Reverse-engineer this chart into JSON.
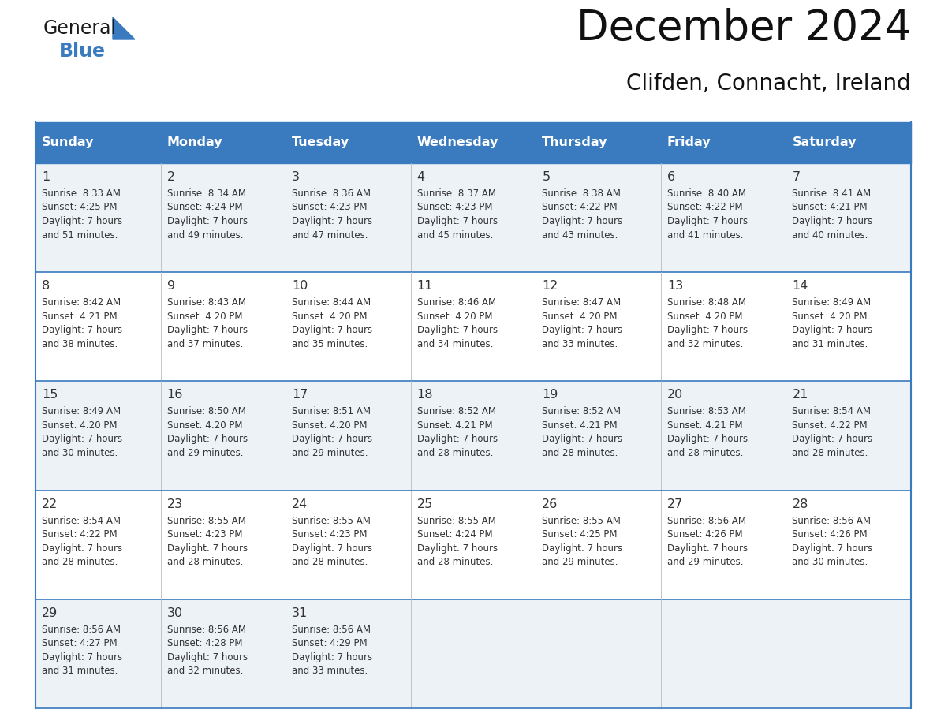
{
  "title": "December 2024",
  "subtitle": "Clifden, Connacht, Ireland",
  "header_color": "#3a7abf",
  "header_text_color": "#ffffff",
  "border_color": "#3a7abf",
  "text_color": "#333333",
  "alt_row_color": "#edf2f7",
  "white_row_color": "#ffffff",
  "days_of_week": [
    "Sunday",
    "Monday",
    "Tuesday",
    "Wednesday",
    "Thursday",
    "Friday",
    "Saturday"
  ],
  "weeks": [
    [
      {
        "day": "1",
        "sunrise": "8:33 AM",
        "sunset": "4:25 PM",
        "daylight_h": "7 hours",
        "daylight_m": "and 51 minutes."
      },
      {
        "day": "2",
        "sunrise": "8:34 AM",
        "sunset": "4:24 PM",
        "daylight_h": "7 hours",
        "daylight_m": "and 49 minutes."
      },
      {
        "day": "3",
        "sunrise": "8:36 AM",
        "sunset": "4:23 PM",
        "daylight_h": "7 hours",
        "daylight_m": "and 47 minutes."
      },
      {
        "day": "4",
        "sunrise": "8:37 AM",
        "sunset": "4:23 PM",
        "daylight_h": "7 hours",
        "daylight_m": "and 45 minutes."
      },
      {
        "day": "5",
        "sunrise": "8:38 AM",
        "sunset": "4:22 PM",
        "daylight_h": "7 hours",
        "daylight_m": "and 43 minutes."
      },
      {
        "day": "6",
        "sunrise": "8:40 AM",
        "sunset": "4:22 PM",
        "daylight_h": "7 hours",
        "daylight_m": "and 41 minutes."
      },
      {
        "day": "7",
        "sunrise": "8:41 AM",
        "sunset": "4:21 PM",
        "daylight_h": "7 hours",
        "daylight_m": "and 40 minutes."
      }
    ],
    [
      {
        "day": "8",
        "sunrise": "8:42 AM",
        "sunset": "4:21 PM",
        "daylight_h": "7 hours",
        "daylight_m": "and 38 minutes."
      },
      {
        "day": "9",
        "sunrise": "8:43 AM",
        "sunset": "4:20 PM",
        "daylight_h": "7 hours",
        "daylight_m": "and 37 minutes."
      },
      {
        "day": "10",
        "sunrise": "8:44 AM",
        "sunset": "4:20 PM",
        "daylight_h": "7 hours",
        "daylight_m": "and 35 minutes."
      },
      {
        "day": "11",
        "sunrise": "8:46 AM",
        "sunset": "4:20 PM",
        "daylight_h": "7 hours",
        "daylight_m": "and 34 minutes."
      },
      {
        "day": "12",
        "sunrise": "8:47 AM",
        "sunset": "4:20 PM",
        "daylight_h": "7 hours",
        "daylight_m": "and 33 minutes."
      },
      {
        "day": "13",
        "sunrise": "8:48 AM",
        "sunset": "4:20 PM",
        "daylight_h": "7 hours",
        "daylight_m": "and 32 minutes."
      },
      {
        "day": "14",
        "sunrise": "8:49 AM",
        "sunset": "4:20 PM",
        "daylight_h": "7 hours",
        "daylight_m": "and 31 minutes."
      }
    ],
    [
      {
        "day": "15",
        "sunrise": "8:49 AM",
        "sunset": "4:20 PM",
        "daylight_h": "7 hours",
        "daylight_m": "and 30 minutes."
      },
      {
        "day": "16",
        "sunrise": "8:50 AM",
        "sunset": "4:20 PM",
        "daylight_h": "7 hours",
        "daylight_m": "and 29 minutes."
      },
      {
        "day": "17",
        "sunrise": "8:51 AM",
        "sunset": "4:20 PM",
        "daylight_h": "7 hours",
        "daylight_m": "and 29 minutes."
      },
      {
        "day": "18",
        "sunrise": "8:52 AM",
        "sunset": "4:21 PM",
        "daylight_h": "7 hours",
        "daylight_m": "and 28 minutes."
      },
      {
        "day": "19",
        "sunrise": "8:52 AM",
        "sunset": "4:21 PM",
        "daylight_h": "7 hours",
        "daylight_m": "and 28 minutes."
      },
      {
        "day": "20",
        "sunrise": "8:53 AM",
        "sunset": "4:21 PM",
        "daylight_h": "7 hours",
        "daylight_m": "and 28 minutes."
      },
      {
        "day": "21",
        "sunrise": "8:54 AM",
        "sunset": "4:22 PM",
        "daylight_h": "7 hours",
        "daylight_m": "and 28 minutes."
      }
    ],
    [
      {
        "day": "22",
        "sunrise": "8:54 AM",
        "sunset": "4:22 PM",
        "daylight_h": "7 hours",
        "daylight_m": "and 28 minutes."
      },
      {
        "day": "23",
        "sunrise": "8:55 AM",
        "sunset": "4:23 PM",
        "daylight_h": "7 hours",
        "daylight_m": "and 28 minutes."
      },
      {
        "day": "24",
        "sunrise": "8:55 AM",
        "sunset": "4:23 PM",
        "daylight_h": "7 hours",
        "daylight_m": "and 28 minutes."
      },
      {
        "day": "25",
        "sunrise": "8:55 AM",
        "sunset": "4:24 PM",
        "daylight_h": "7 hours",
        "daylight_m": "and 28 minutes."
      },
      {
        "day": "26",
        "sunrise": "8:55 AM",
        "sunset": "4:25 PM",
        "daylight_h": "7 hours",
        "daylight_m": "and 29 minutes."
      },
      {
        "day": "27",
        "sunrise": "8:56 AM",
        "sunset": "4:26 PM",
        "daylight_h": "7 hours",
        "daylight_m": "and 29 minutes."
      },
      {
        "day": "28",
        "sunrise": "8:56 AM",
        "sunset": "4:26 PM",
        "daylight_h": "7 hours",
        "daylight_m": "and 30 minutes."
      }
    ],
    [
      {
        "day": "29",
        "sunrise": "8:56 AM",
        "sunset": "4:27 PM",
        "daylight_h": "7 hours",
        "daylight_m": "and 31 minutes."
      },
      {
        "day": "30",
        "sunrise": "8:56 AM",
        "sunset": "4:28 PM",
        "daylight_h": "7 hours",
        "daylight_m": "and 32 minutes."
      },
      {
        "day": "31",
        "sunrise": "8:56 AM",
        "sunset": "4:29 PM",
        "daylight_h": "7 hours",
        "daylight_m": "and 33 minutes."
      },
      null,
      null,
      null,
      null
    ]
  ],
  "logo_general_color": "#1a1a1a",
  "logo_blue_color": "#3a7abf",
  "logo_triangle_color": "#3a7abf"
}
